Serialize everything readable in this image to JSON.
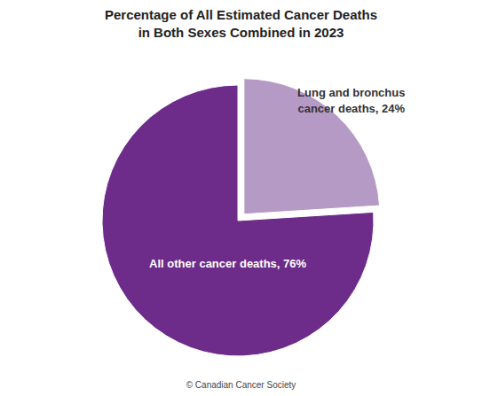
{
  "chart_data": {
    "type": "pie",
    "title": "Percentage of All Estimated Cancer Deaths in Both Sexes Combined in 2023",
    "categories": [
      "Lung and bronchus cancer deaths, 24%",
      "All other cancer deaths, 76%"
    ],
    "values": [
      24,
      76
    ],
    "colors": [
      "#b59ac6",
      "#6e2c8a"
    ],
    "annotations": [
      "© Canadian Cancer Society"
    ]
  }
}
